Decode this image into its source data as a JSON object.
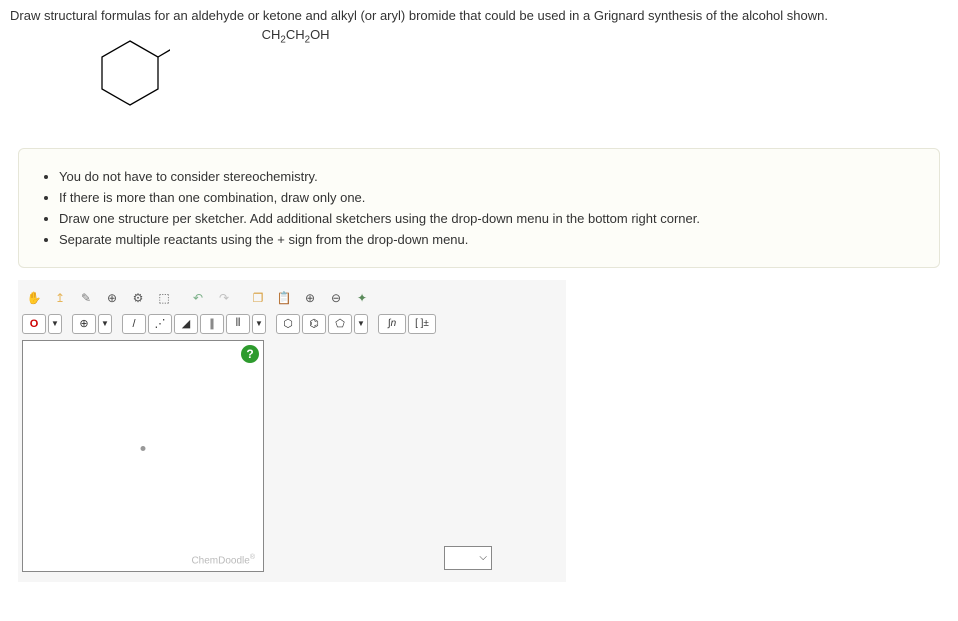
{
  "question": {
    "prompt": "Draw structural formulas for an aldehyde or ketone and alkyl (or aryl) bromide that could be used in a Grignard synthesis of the alcohol shown.",
    "formula_html": "CH<sub>2</sub>CH<sub>2</sub>OH"
  },
  "instructions": [
    "You do not have to consider stereochemistry.",
    "If there is more than one combination, draw only one.",
    "Draw one structure per sketcher. Add additional sketchers using the drop-down menu in the bottom right corner.",
    "Separate multiple reactants using the + sign from the drop-down menu."
  ],
  "toolbar": {
    "row1": [
      {
        "name": "hand-tool",
        "glyph": "✋",
        "color": "#e6b55a"
      },
      {
        "name": "pointer-tool",
        "glyph": "↥",
        "color": "#e6b55a"
      },
      {
        "name": "eraser-tool",
        "glyph": "✎",
        "color": "#7a7a7a"
      },
      {
        "name": "center-tool",
        "glyph": "⊕",
        "color": "#555"
      },
      {
        "name": "clean-tool",
        "glyph": "⚙",
        "color": "#555"
      },
      {
        "name": "lasso-tool",
        "glyph": "⬚",
        "color": "#555"
      },
      {
        "name": "undo-tool",
        "glyph": "↶",
        "color": "#7bb088"
      },
      {
        "name": "redo-tool",
        "glyph": "↷",
        "color": "#c0c0c0"
      },
      {
        "name": "copy-tool",
        "glyph": "❐",
        "color": "#d8a040"
      },
      {
        "name": "paste-tool",
        "glyph": "📋",
        "color": "#555"
      },
      {
        "name": "zoom-in-tool",
        "glyph": "⊕",
        "color": "#555"
      },
      {
        "name": "zoom-out-tool",
        "glyph": "⊖",
        "color": "#555"
      },
      {
        "name": "marquee-tool",
        "glyph": "✦",
        "color": "#5a8a5a"
      }
    ],
    "element_label": "O",
    "charge_label": "⊕",
    "bonds": [
      {
        "name": "single-bond",
        "glyph": "/"
      },
      {
        "name": "recessed-bond",
        "glyph": "⋰"
      },
      {
        "name": "wedge-bond",
        "glyph": "◢"
      },
      {
        "name": "double-bond",
        "glyph": "∥"
      },
      {
        "name": "triple-bond",
        "glyph": "⦀"
      }
    ],
    "rings": [
      {
        "name": "cyclohexane-ring",
        "glyph": "⬡"
      },
      {
        "name": "benzene-ring",
        "glyph": "⌬"
      },
      {
        "name": "cyclopentane-ring",
        "glyph": "⬠"
      }
    ],
    "chain_label": "∫n",
    "bracket_label": "[ ]±"
  },
  "canvas": {
    "watermark": "ChemDoodle",
    "help_label": "?"
  },
  "colors": {
    "instruction_bg": "#fdfdf8",
    "instruction_border": "#e6e6d8",
    "element_color": "#c00",
    "help_bg": "#2e9b2e"
  }
}
